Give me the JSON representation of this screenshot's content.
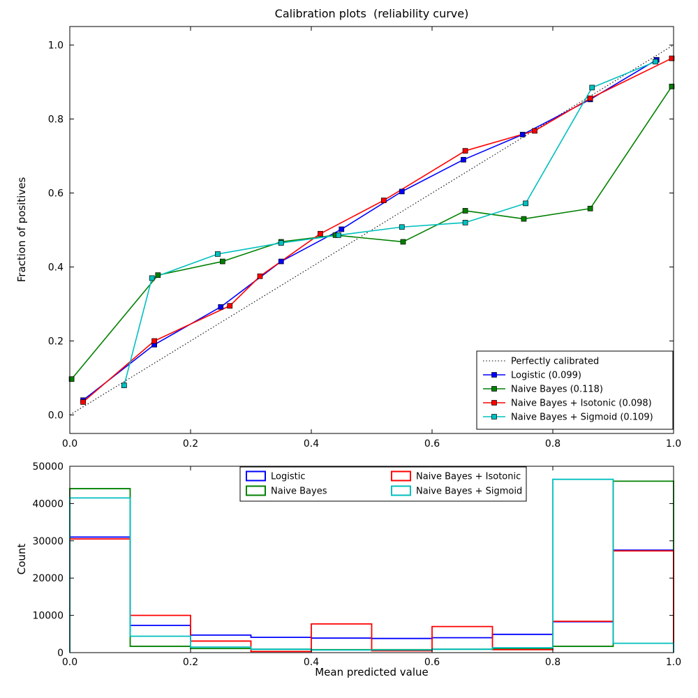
{
  "figure": {
    "background": "#ffffff",
    "title": "Calibration plots  (reliability curve)"
  },
  "chart_data": [
    {
      "type": "line",
      "title": "Calibration plots  (reliability curve)",
      "xlabel": "",
      "ylabel": "Fraction of positives",
      "xlim": [
        0,
        1
      ],
      "ylim": [
        -0.05,
        1.05
      ],
      "xticks": [
        0,
        0.2,
        0.4,
        0.6,
        0.8,
        1
      ],
      "xtick_labels": [
        "0.0",
        "0.2",
        "0.4",
        "0.6",
        "0.8",
        "1.0"
      ],
      "yticks": [
        0,
        0.2,
        0.4,
        0.6,
        0.8,
        1
      ],
      "ytick_labels": [
        "0.0",
        "0.2",
        "0.4",
        "0.6",
        "0.8",
        "1.0"
      ],
      "grid": false,
      "legend_position": "lower right",
      "reference": {
        "label": "Perfectly calibrated",
        "color": "#000000",
        "style": "dotted",
        "x": [
          0,
          1
        ],
        "y": [
          0,
          1
        ]
      },
      "series": [
        {
          "name": "Logistic (0.099)",
          "color": "#0000ff",
          "marker": "square",
          "x": [
            0.022,
            0.14,
            0.25,
            0.35,
            0.45,
            0.55,
            0.652,
            0.75,
            0.862,
            0.972
          ],
          "y": [
            0.04,
            0.19,
            0.292,
            0.415,
            0.502,
            0.604,
            0.69,
            0.758,
            0.853,
            0.96
          ]
        },
        {
          "name": "Naive Bayes (0.118)",
          "color": "#008000",
          "marker": "square",
          "x": [
            0.003,
            0.146,
            0.253,
            0.35,
            0.44,
            0.552,
            0.655,
            0.752,
            0.862,
            0.997
          ],
          "y": [
            0.097,
            0.378,
            0.415,
            0.468,
            0.486,
            0.468,
            0.552,
            0.53,
            0.558,
            0.888
          ]
        },
        {
          "name": "Naive Bayes + Isotonic (0.098)",
          "color": "#ff0000",
          "marker": "square",
          "x": [
            0.022,
            0.14,
            0.265,
            0.315,
            0.415,
            0.52,
            0.655,
            0.77,
            0.862,
            0.997
          ],
          "y": [
            0.035,
            0.2,
            0.295,
            0.375,
            0.49,
            0.58,
            0.714,
            0.768,
            0.856,
            0.964
          ]
        },
        {
          "name": "Naive Bayes + Sigmoid (0.109)",
          "color": "#00bfbf",
          "marker": "square",
          "x": [
            0.09,
            0.136,
            0.245,
            0.35,
            0.445,
            0.55,
            0.655,
            0.755,
            0.865,
            0.97
          ],
          "y": [
            0.08,
            0.37,
            0.435,
            0.465,
            0.486,
            0.508,
            0.52,
            0.572,
            0.885,
            0.955
          ]
        }
      ]
    },
    {
      "type": "step-histogram",
      "title": "",
      "xlabel": "Mean predicted value",
      "ylabel": "Count",
      "xlim": [
        0,
        1
      ],
      "ylim": [
        0,
        50000
      ],
      "xticks": [
        0,
        0.2,
        0.4,
        0.6,
        0.8,
        1
      ],
      "xtick_labels": [
        "0.0",
        "0.2",
        "0.4",
        "0.6",
        "0.8",
        "1.0"
      ],
      "yticks": [
        0,
        10000,
        20000,
        30000,
        40000,
        50000
      ],
      "ytick_labels": [
        "0",
        "10000",
        "20000",
        "30000",
        "40000",
        "50000"
      ],
      "grid": false,
      "legend_position": "upper center",
      "legend_columns": 2,
      "bin_edges": [
        0,
        0.1,
        0.2,
        0.3,
        0.4,
        0.5,
        0.6,
        0.7,
        0.8,
        0.9,
        1
      ],
      "series": [
        {
          "name": "Logistic",
          "color": "#0000ff",
          "counts": [
            31000,
            7300,
            4700,
            4100,
            3900,
            3800,
            4000,
            4900,
            8300,
            27500
          ]
        },
        {
          "name": "Naive Bayes",
          "color": "#008000",
          "counts": [
            44000,
            1700,
            1100,
            900,
            800,
            800,
            900,
            1100,
            1700,
            46000
          ]
        },
        {
          "name": "Naive Bayes + Isotonic",
          "color": "#ff0000",
          "counts": [
            30500,
            10000,
            3100,
            300,
            7700,
            500,
            7000,
            800,
            8400,
            27300
          ]
        },
        {
          "name": "Naive Bayes + Sigmoid",
          "color": "#00bfbf",
          "counts": [
            41500,
            4400,
            1500,
            900,
            700,
            700,
            900,
            1300,
            46500,
            2500
          ]
        }
      ]
    }
  ]
}
